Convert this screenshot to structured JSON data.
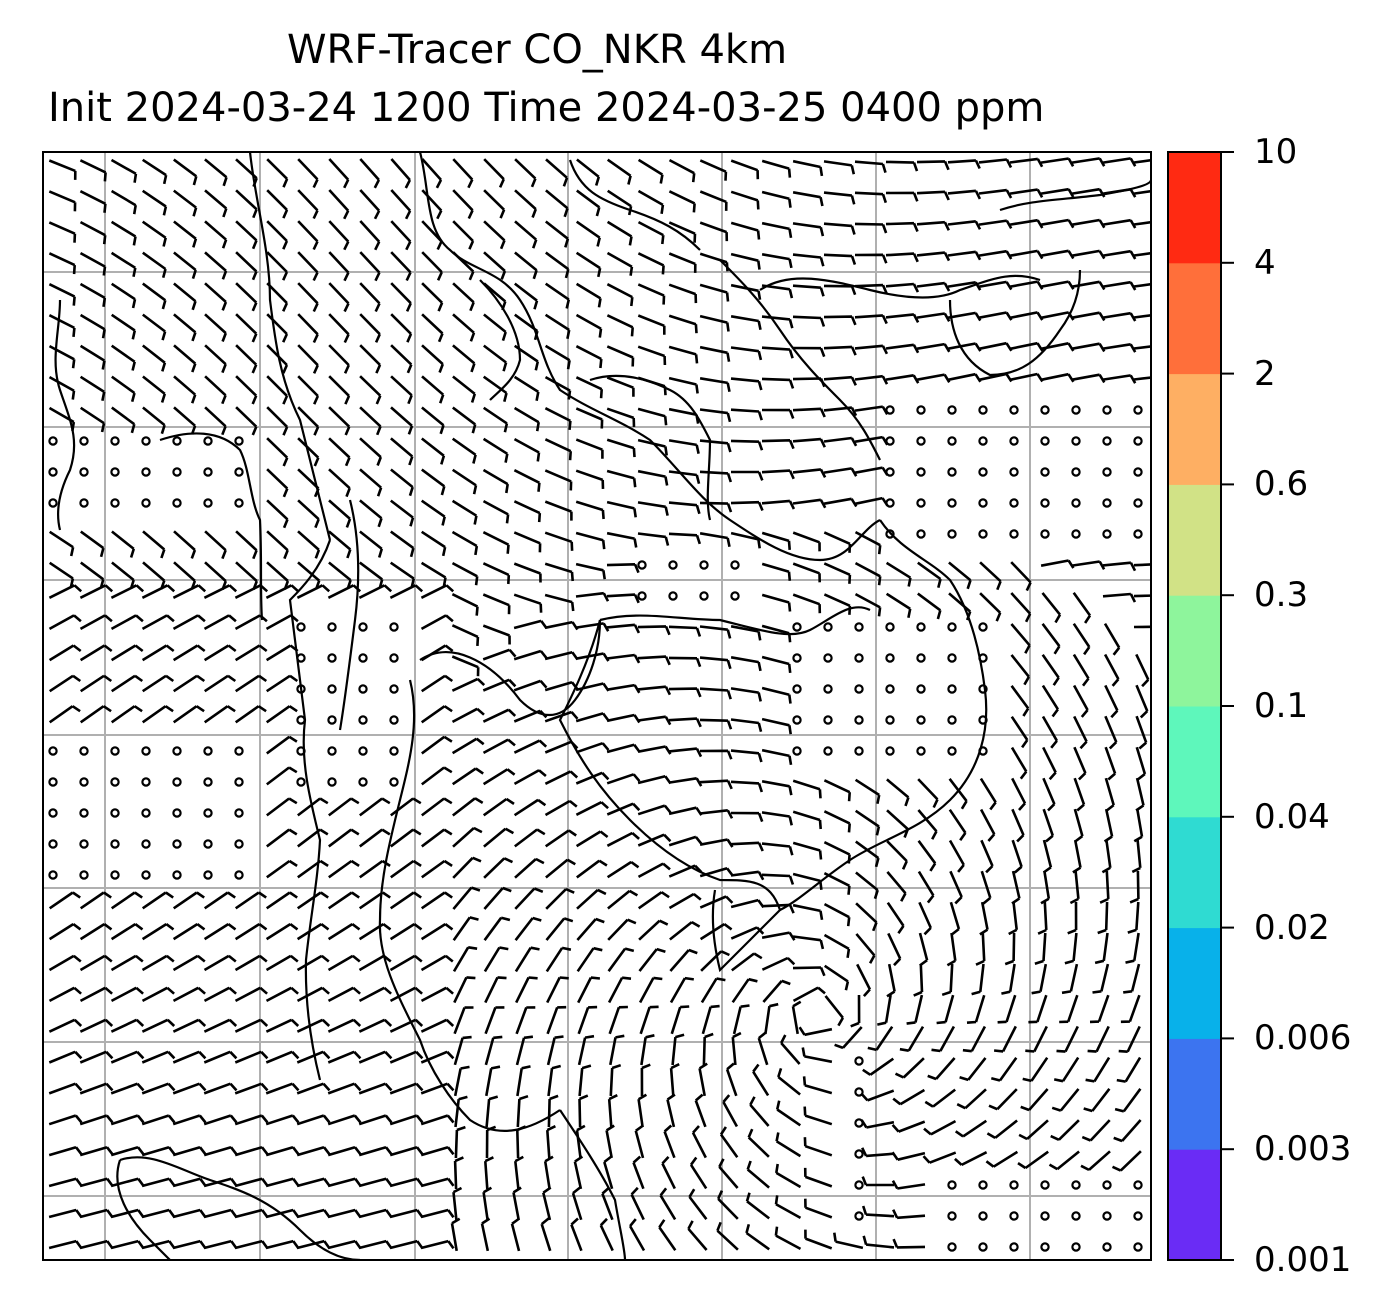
{
  "title": {
    "line1": "WRF-Tracer CO_NKR 4km",
    "line2": "Init 2024-03-24 1200 Time 2024-03-25 0400 ppm"
  },
  "colorbar": {
    "levels": [
      "0.001",
      "0.003",
      "0.006",
      "0.02",
      "0.04",
      "0.1",
      "0.3",
      "0.6",
      "2",
      "4",
      "10"
    ],
    "colors": [
      "#6a2cf5",
      "#3c74f0",
      "#08b1ea",
      "#2fdbd2",
      "#5ef7bb",
      "#8ef59c",
      "#d1e286",
      "#feaf63",
      "#ff6f3a",
      "#ff2a12"
    ]
  },
  "map": {
    "grid": "on",
    "wind_barbs": "on",
    "calm_markers": "on",
    "coastline_color": "#000000",
    "gridline_color": "#b0b0b0"
  }
}
